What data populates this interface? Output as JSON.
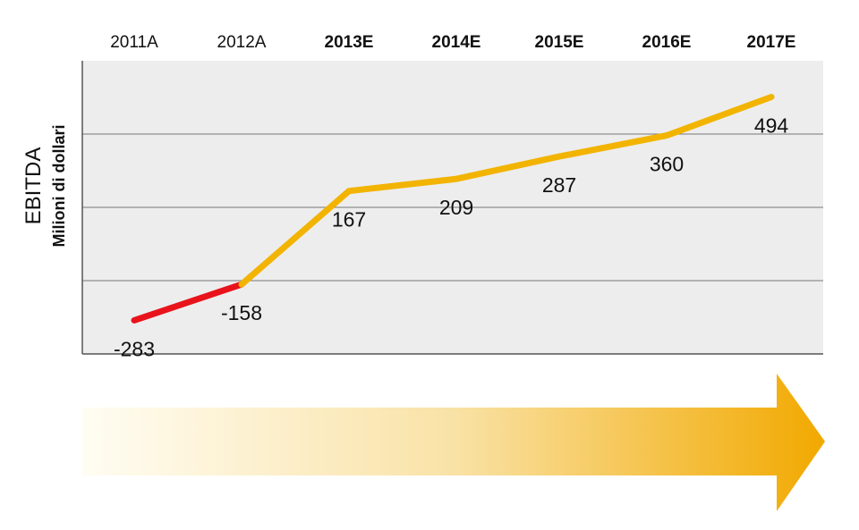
{
  "colors": {
    "actual_line": "#e8131b",
    "estimate_line": "#f2b400",
    "plot_bg": "#ededed",
    "grid": "#777777",
    "arrow_start": "#fffdf3",
    "arrow_end": "#f2a900"
  },
  "chart_data": {
    "type": "line",
    "ylabel": "EBITDA",
    "ylabel_sub": "Milioni di dollari",
    "categories": [
      "2011A",
      "2012A",
      "2013E",
      "2014E",
      "2015E",
      "2016E",
      "2017E"
    ],
    "category_bold": [
      false,
      false,
      true,
      true,
      true,
      true,
      true
    ],
    "values": [
      -283,
      -158,
      167,
      209,
      287,
      360,
      494
    ],
    "data_labels": [
      "-283",
      "-158",
      "167",
      "209",
      "287",
      "360",
      "494"
    ],
    "segments": [
      {
        "from": 0,
        "to": 1,
        "kind": "actual"
      },
      {
        "from": 1,
        "to": 6,
        "kind": "estimate"
      }
    ],
    "ylim": [
      -400,
      620
    ],
    "grid": true,
    "yticks_labeled": false
  },
  "decoration": {
    "arrow": "growth-arrow"
  }
}
